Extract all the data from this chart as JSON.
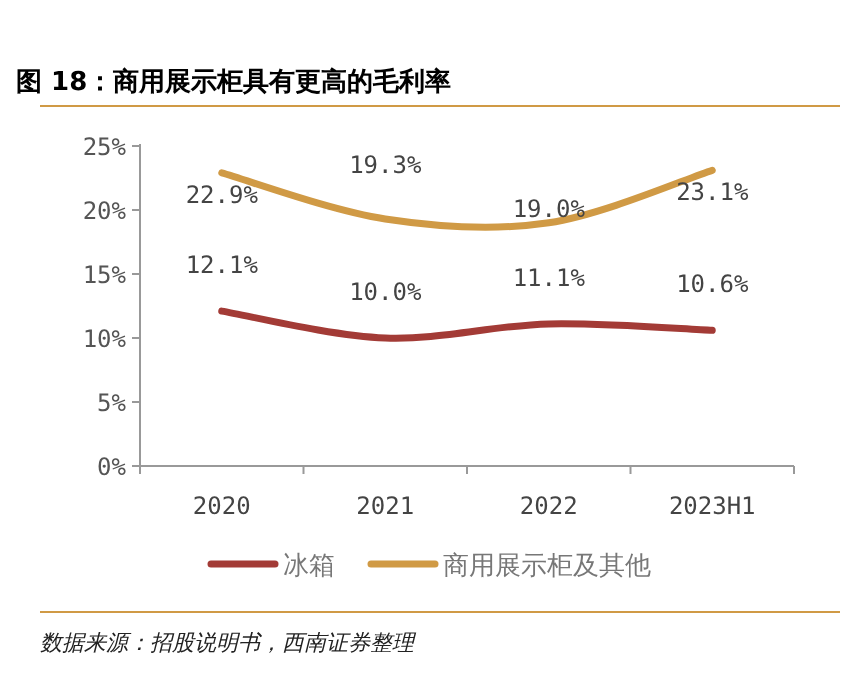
{
  "chart_data": {
    "type": "line",
    "title": "图 18：商用展示柜具有更高的毛利率",
    "categories": [
      "2020",
      "2021",
      "2022",
      "2023H1"
    ],
    "series": [
      {
        "name": "冰箱",
        "color": "#a33b36",
        "values": [
          12.1,
          10.0,
          11.1,
          10.6
        ],
        "value_labels": [
          "12.1%",
          "10.0%",
          "11.1%",
          "10.6%"
        ]
      },
      {
        "name": "商用展示柜及其他",
        "color": "#d09a45",
        "values": [
          22.9,
          19.3,
          19.0,
          23.1
        ],
        "value_labels": [
          "22.9%",
          "19.3%",
          "19.0%",
          "23.1%"
        ]
      }
    ],
    "ylim": [
      0,
      25
    ],
    "yticks": [
      {
        "value": 0,
        "label": "0%"
      },
      {
        "value": 5,
        "label": "5%"
      },
      {
        "value": 10,
        "label": "10%"
      },
      {
        "value": 15,
        "label": "15%"
      },
      {
        "value": 20,
        "label": "20%"
      },
      {
        "value": 25,
        "label": "25%"
      }
    ],
    "legend": "bottom",
    "grid": false,
    "marker": "none",
    "line_style": "solid",
    "annotations": [
      "数据来源：招股说明书，西南证券整理"
    ]
  }
}
